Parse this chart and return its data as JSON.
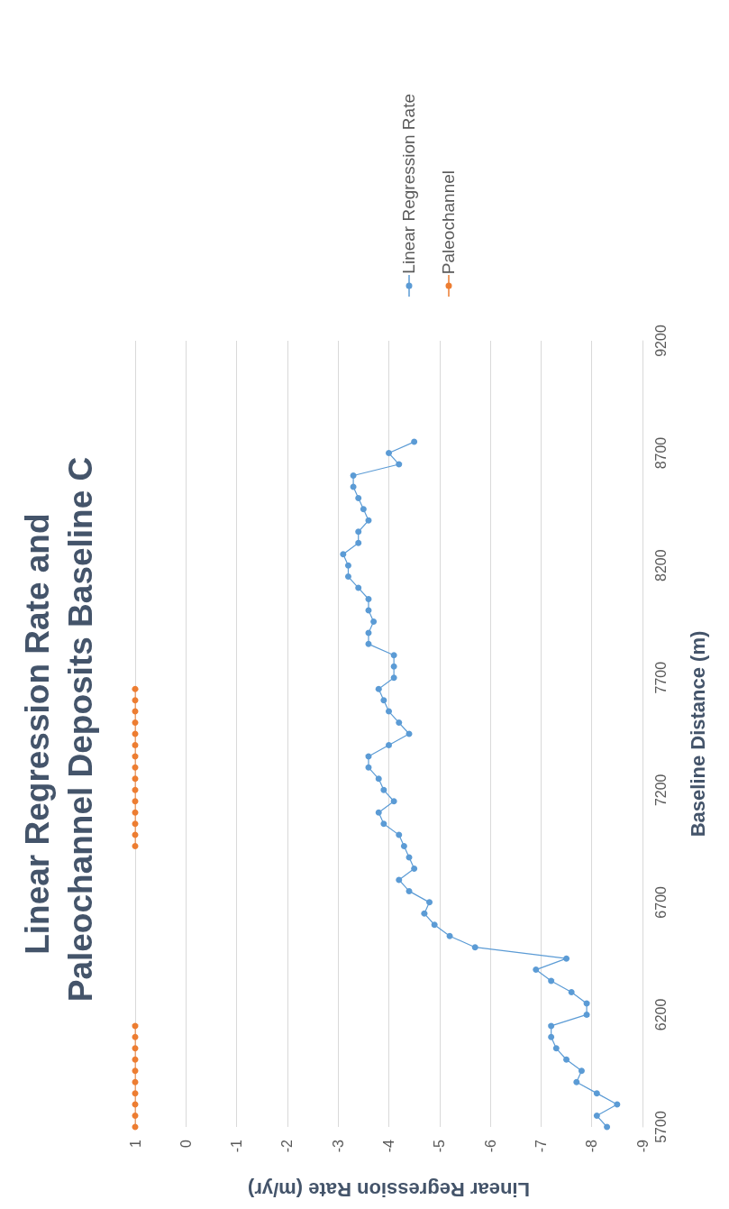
{
  "chart_data": {
    "type": "line",
    "title": "Linear Regression Rate and Paleochannel Deposits Baseline C",
    "xlabel": "Linear Regression Rate (m/yr)",
    "ylabel": "Baseline Distance (m)",
    "series": [
      {
        "name": "Linear Regression Rate",
        "color": "#5b9bd5",
        "x": [
          -8.3,
          -8.1,
          -8.5,
          -8.1,
          -7.7,
          -7.8,
          -7.5,
          -7.3,
          -7.2,
          -7.2,
          -7.9,
          -7.9,
          -7.6,
          -7.2,
          -6.9,
          -7.5,
          -5.7,
          -5.2,
          -4.9,
          -4.7,
          -4.8,
          -4.4,
          -4.2,
          -4.5,
          -4.4,
          -4.3,
          -4.2,
          -3.9,
          -3.8,
          -4.1,
          -3.9,
          -3.8,
          -3.6,
          -3.6,
          -4.0,
          -4.4,
          -4.2,
          -4.0,
          -3.9,
          -3.8,
          -4.1,
          -4.1,
          -4.1,
          -3.6,
          -3.6,
          -3.7,
          -3.6,
          -3.6,
          -3.4,
          -3.2,
          -3.2,
          -3.1,
          -3.4,
          -3.4,
          -3.6,
          -3.5,
          -3.4,
          -3.3,
          -3.3,
          -4.2,
          -4.0,
          -4.5
        ],
        "values": [
          5700,
          5750,
          5800,
          5850,
          5900,
          5950,
          6000,
          6050,
          6100,
          6150,
          6200,
          6250,
          6300,
          6350,
          6400,
          6450,
          6500,
          6550,
          6600,
          6650,
          6700,
          6750,
          6800,
          6850,
          6900,
          6950,
          7000,
          7050,
          7100,
          7150,
          7200,
          7250,
          7300,
          7350,
          7400,
          7450,
          7500,
          7550,
          7600,
          7650,
          7700,
          7750,
          7800,
          7850,
          7900,
          7950,
          8000,
          8050,
          8100,
          8150,
          8200,
          8250,
          8300,
          8350,
          8400,
          8450,
          8500,
          8550,
          8600,
          8650,
          8700,
          8750
        ]
      },
      {
        "name": "Paleochannel",
        "color": "#ed7d31",
        "x": [
          1,
          1,
          1,
          1,
          1,
          1,
          1,
          1,
          1,
          1,
          null,
          1,
          1,
          1,
          1,
          1,
          1,
          1,
          1,
          1,
          1,
          1,
          1,
          1,
          1,
          1
        ],
        "values": [
          5700,
          5750,
          5800,
          5850,
          5900,
          5950,
          6000,
          6050,
          6100,
          6150,
          null,
          6950,
          7000,
          7050,
          7100,
          7150,
          7200,
          7250,
          7300,
          7350,
          7400,
          7450,
          7500,
          7550,
          7600,
          7650
        ]
      }
    ],
    "xlim": [
      1,
      -9
    ],
    "xticks": [
      1,
      0,
      -1,
      -2,
      -3,
      -4,
      -5,
      -6,
      -7,
      -8,
      -9
    ],
    "ylim": [
      5700,
      9200
    ],
    "yticks": [
      5700,
      6200,
      6700,
      7200,
      7700,
      8200,
      8700,
      9200
    ],
    "grid": "x",
    "legend": "top right",
    "marker": "circle",
    "line_style": "solid"
  }
}
